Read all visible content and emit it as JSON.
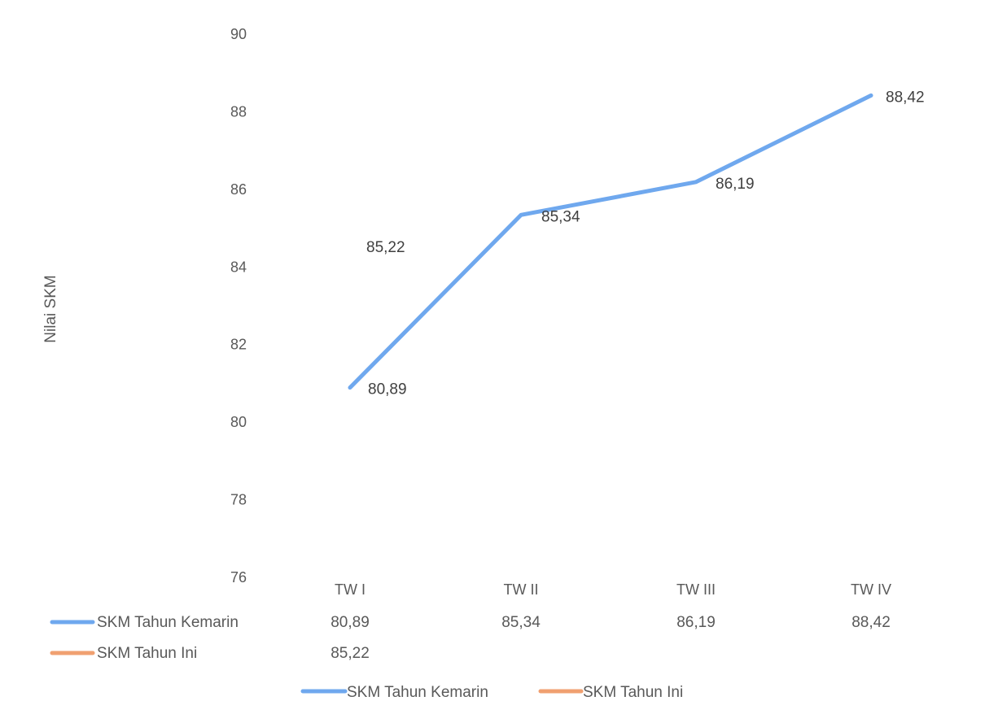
{
  "chart_data": {
    "type": "line",
    "title": "",
    "xlabel": "",
    "ylabel": "Nilai SKM",
    "ylim": [
      76,
      90
    ],
    "yticks": [
      76,
      78,
      80,
      82,
      84,
      86,
      88,
      90
    ],
    "categories": [
      "TW I",
      "TW II",
      "TW III",
      "TW IV"
    ],
    "series": [
      {
        "name": "SKM Tahun Kemarin",
        "color": "#6FA8EE",
        "values": [
          80.89,
          85.34,
          86.19,
          88.42
        ],
        "labels": [
          "80,89",
          "85,34",
          "86,19",
          "88,42"
        ]
      },
      {
        "name": "SKM Tahun Ini",
        "color": "#F0A070",
        "values": [
          85.22,
          null,
          null,
          null
        ],
        "labels": [
          "85,22",
          "",
          "",
          ""
        ]
      }
    ],
    "data_table": true,
    "legend_position": "bottom",
    "grid": false
  }
}
